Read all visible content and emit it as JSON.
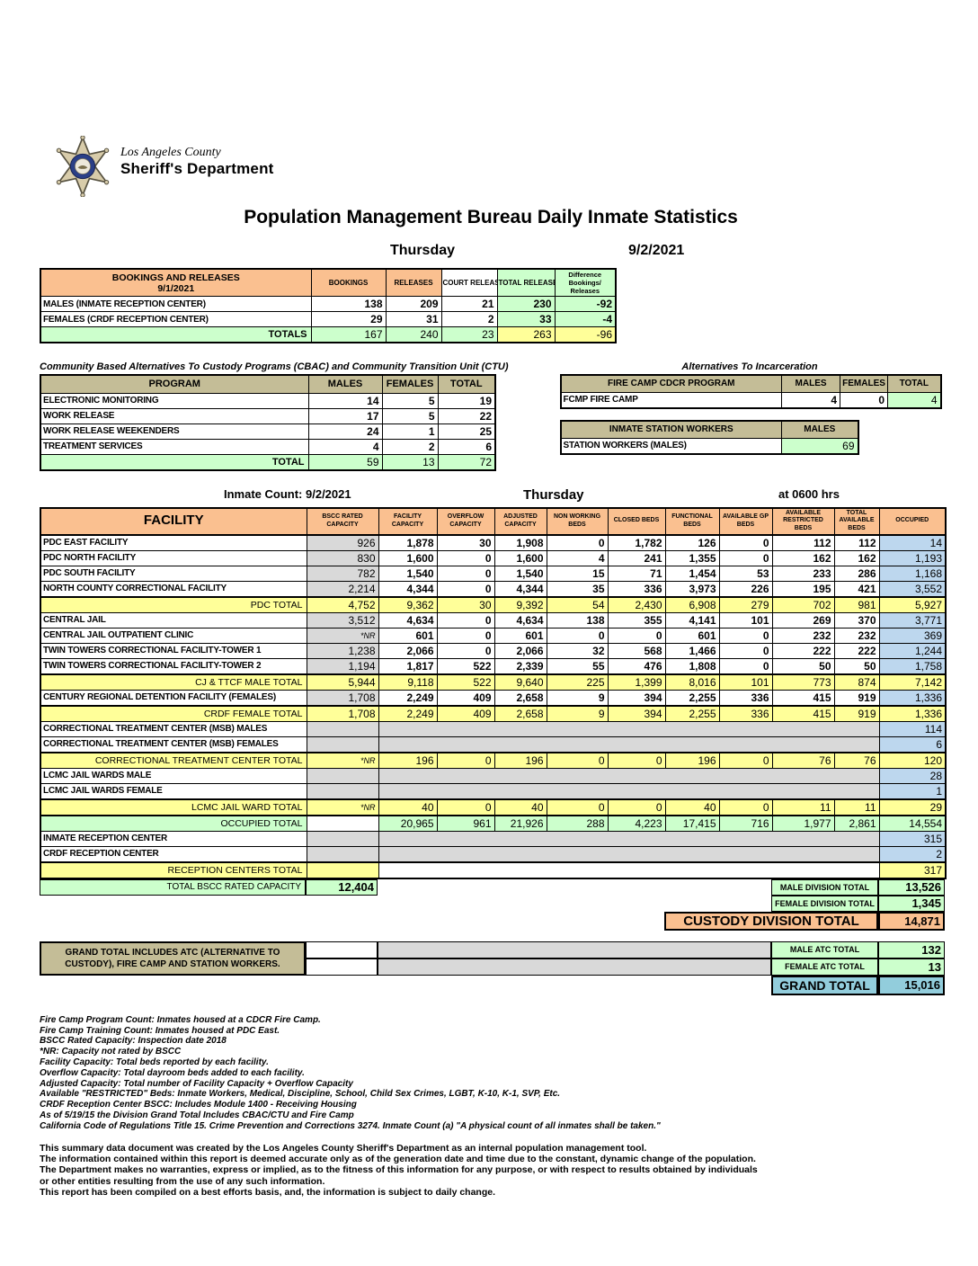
{
  "colors": {
    "orange": "#FAC090",
    "green": "#CCFFCC",
    "yellow": "#FFFF99",
    "tan": "#C4BD97",
    "gray": "#D9D9D9",
    "blue": "#BDD7EE",
    "teal": "#92CDDC",
    "badge_fill": "#D8CCAA",
    "badge_ring": "#2B3F87"
  },
  "logo": {
    "county": "Los Angeles County",
    "dept": "Sheriff's Department"
  },
  "title": "Population Management Bureau Daily Inmate Statistics",
  "header": {
    "weekday": "Thursday",
    "date": "9/2/2021"
  },
  "bookings": {
    "title": "BOOKINGS AND RELEASES",
    "date": "9/1/2021",
    "columns": [
      "BOOKINGS",
      "RELEASES",
      "COURT RELEASES",
      "TOTAL RELEASES",
      "Difference Bookings/ Releases"
    ],
    "rows": [
      {
        "label": "MALES (INMATE RECEPTION CENTER)",
        "values": [
          "138",
          "209",
          "21",
          "230",
          "-92"
        ]
      },
      {
        "label": "FEMALES (CRDF RECEPTION CENTER)",
        "values": [
          "29",
          "31",
          "2",
          "33",
          "-4"
        ]
      }
    ],
    "totals": {
      "label": "TOTALS",
      "values": [
        "167",
        "240",
        "23",
        "263",
        "-96"
      ]
    }
  },
  "cbac": {
    "title": "Community Based Alternatives To Custody Programs (CBAC) and Community Transition Unit (CTU)",
    "columns": [
      "PROGRAM",
      "MALES",
      "FEMALES",
      "TOTAL"
    ],
    "rows": [
      {
        "label": "ELECTRONIC MONITORING",
        "values": [
          "14",
          "5",
          "19"
        ]
      },
      {
        "label": "WORK RELEASE",
        "values": [
          "17",
          "5",
          "22"
        ]
      },
      {
        "label": "WORK RELEASE WEEKENDERS",
        "values": [
          "24",
          "1",
          "25"
        ]
      },
      {
        "label": "TREATMENT SERVICES",
        "values": [
          "4",
          "2",
          "6"
        ]
      }
    ],
    "totals": {
      "label": "TOTAL",
      "values": [
        "59",
        "13",
        "72"
      ]
    }
  },
  "ati": {
    "title": "Alternatives To Incarceration",
    "fire_camp": {
      "columns": [
        "FIRE CAMP CDCR PROGRAM",
        "MALES",
        "FEMALES",
        "TOTAL"
      ],
      "row": {
        "label": "FCMP FIRE CAMP",
        "values": [
          "4",
          "0",
          "4"
        ]
      }
    },
    "station_workers": {
      "columns": [
        "INMATE STATION WORKERS",
        "MALES"
      ],
      "row": {
        "label": "STATION WORKERS (MALES)",
        "value": "69"
      }
    }
  },
  "facility_table": {
    "count_label": "Inmate Count: 9/2/2021",
    "weekday": "Thursday",
    "time": "at 0600 hrs",
    "columns": [
      "FACILITY",
      "BSCC RATED CAPACITY",
      "FACILITY CAPACITY",
      "OVERFLOW CAPACITY",
      "ADJUSTED CAPACITY",
      "NON WORKING BEDS",
      "CLOSED BEDS",
      "FUNCTIONAL BEDS",
      "AVAILABLE GP BEDS",
      "AVAILABLE RESTRICTED BEDS",
      "TOTAL AVAILABLE BEDS",
      "OCCUPIED"
    ],
    "rows": [
      {
        "type": "f",
        "label": "PDC EAST FACILITY",
        "bscc": "926",
        "values": [
          "1,878",
          "30",
          "1,908",
          "0",
          "1,782",
          "126",
          "0",
          "112",
          "112"
        ],
        "occupied": "14"
      },
      {
        "type": "f",
        "label": "PDC NORTH FACILITY",
        "bscc": "830",
        "values": [
          "1,600",
          "0",
          "1,600",
          "4",
          "241",
          "1,355",
          "0",
          "162",
          "162"
        ],
        "occupied": "1,193"
      },
      {
        "type": "f",
        "label": "PDC SOUTH FACILITY",
        "bscc": "782",
        "values": [
          "1,540",
          "0",
          "1,540",
          "15",
          "71",
          "1,454",
          "53",
          "233",
          "286"
        ],
        "occupied": "1,168"
      },
      {
        "type": "f",
        "label": "NORTH COUNTY CORRECTIONAL FACILITY",
        "bscc": "2,214",
        "values": [
          "4,344",
          "0",
          "4,344",
          "35",
          "336",
          "3,973",
          "226",
          "195",
          "421"
        ],
        "occupied": "3,552"
      },
      {
        "type": "t",
        "label": "PDC TOTAL",
        "bscc": "4,752",
        "values": [
          "9,362",
          "30",
          "9,392",
          "54",
          "2,430",
          "6,908",
          "279",
          "702",
          "981"
        ],
        "occupied": "5,927"
      },
      {
        "type": "f",
        "label": "CENTRAL JAIL",
        "bscc": "3,512",
        "values": [
          "4,634",
          "0",
          "4,634",
          "138",
          "355",
          "4,141",
          "101",
          "269",
          "370"
        ],
        "occupied": "3,771"
      },
      {
        "type": "f",
        "label": "CENTRAL JAIL OUTPATIENT CLINIC",
        "bscc": "*NR",
        "values": [
          "601",
          "0",
          "601",
          "0",
          "0",
          "601",
          "0",
          "232",
          "232"
        ],
        "occupied": "369"
      },
      {
        "type": "f",
        "label": "TWIN TOWERS CORRECTIONAL FACILITY-TOWER 1",
        "bscc": "1,238",
        "values": [
          "2,066",
          "0",
          "2,066",
          "32",
          "568",
          "1,466",
          "0",
          "222",
          "222"
        ],
        "occupied": "1,244"
      },
      {
        "type": "f",
        "label": "TWIN TOWERS CORRECTIONAL FACILITY-TOWER 2",
        "bscc": "1,194",
        "values": [
          "1,817",
          "522",
          "2,339",
          "55",
          "476",
          "1,808",
          "0",
          "50",
          "50"
        ],
        "occupied": "1,758"
      },
      {
        "type": "t",
        "label": "CJ & TTCF MALE TOTAL",
        "bscc": "5,944",
        "values": [
          "9,118",
          "522",
          "9,640",
          "225",
          "1,399",
          "8,016",
          "101",
          "773",
          "874"
        ],
        "occupied": "7,142"
      },
      {
        "type": "f",
        "label": "CENTURY REGIONAL DETENTION FACILITY (FEMALES)",
        "bscc": "1,708",
        "values": [
          "2,249",
          "409",
          "2,658",
          "9",
          "394",
          "2,255",
          "336",
          "415",
          "919"
        ],
        "occupied": "1,336"
      },
      {
        "type": "t",
        "label": "CRDF FEMALE TOTAL",
        "bscc": "1,708",
        "values": [
          "2,249",
          "409",
          "2,658",
          "9",
          "394",
          "2,255",
          "336",
          "415",
          "919"
        ],
        "occupied": "1,336"
      },
      {
        "type": "g",
        "label": "CORRECTIONAL TREATMENT CENTER (MSB) MALES",
        "occupied": "114"
      },
      {
        "type": "g",
        "label": "CORRECTIONAL TREATMENT CENTER (MSB) FEMALES",
        "occupied": "6"
      },
      {
        "type": "t",
        "label": "CORRECTIONAL TREATMENT CENTER  TOTAL",
        "bscc": "*NR",
        "values": [
          "196",
          "0",
          "196",
          "0",
          "0",
          "196",
          "0",
          "76",
          "76"
        ],
        "occupied": "120"
      },
      {
        "type": "g",
        "label": "LCMC JAIL WARDS MALE",
        "occupied": "28"
      },
      {
        "type": "g",
        "label": "LCMC JAIL WARDS FEMALE",
        "occupied": "1"
      },
      {
        "type": "t",
        "label": "LCMC JAIL WARD TOTAL",
        "bscc": "*NR",
        "values": [
          "40",
          "0",
          "40",
          "0",
          "0",
          "40",
          "0",
          "11",
          "11"
        ],
        "occupied": "29"
      },
      {
        "type": "gt",
        "label": "OCCUPIED TOTAL",
        "bscc": "",
        "values": [
          "20,965",
          "961",
          "21,926",
          "288",
          "4,223",
          "17,415",
          "716",
          "1,977",
          "2,861"
        ],
        "occupied": "14,554"
      },
      {
        "type": "g",
        "label": "INMATE RECEPTION CENTER",
        "occupied": "315"
      },
      {
        "type": "g",
        "label": "CRDF RECEPTION CENTER",
        "occupied": "2"
      },
      {
        "type": "rt",
        "label": "RECEPTION CENTERS TOTAL",
        "occupied": "317"
      }
    ],
    "bscc_total": {
      "label": "TOTAL BSCC RATED CAPACITY",
      "value": "12,404"
    },
    "division_totals": [
      {
        "label": "MALE DIVISION TOTAL",
        "value": "13,526"
      },
      {
        "label": "FEMALE DIVISION TOTAL",
        "value": "1,345"
      }
    ],
    "custody_total": {
      "label": "CUSTODY DIVISION TOTAL",
      "value": "14,871"
    }
  },
  "atc": {
    "note": "GRAND TOTAL INCLUDES ATC (ALTERNATIVE TO CUSTODY), FIRE CAMP AND STATION WORKERS.",
    "rows": [
      {
        "label": "MALE ATC TOTAL",
        "value": "132"
      },
      {
        "label": "FEMALE ATC TOTAL",
        "value": "13"
      }
    ],
    "grand_total": {
      "label": "GRAND TOTAL",
      "value": "15,016"
    }
  },
  "footnotes": [
    "Fire Camp Program Count: Inmates housed at a CDCR Fire Camp.",
    "Fire Camp Training Count: Inmates housed at PDC East.",
    "BSCC Rated Capacity: Inspection date 2018",
    "*NR: Capacity not rated by BSCC",
    "Facility Capacity: Total beds reported by each facility.",
    "Overflow Capacity: Total dayroom beds added to each facility.",
    "Adjusted Capacity: Total number of Facility Capacity + Overflow Capacity",
    "Available \"RESTRICTED\" Beds: Inmate Workers, Medical, Discipline, School, Child Sex Crimes,  LGBT, K-10, K-1, SVP, Etc.",
    "CRDF Reception Center BSCC: Includes Module 1400 - Receiving Housing",
    "As of 5/19/15 the Division Grand Total Includes CBAC/CTU and Fire Camp",
    "California Code of Regulations Title 15. Crime Prevention and Corrections 3274. Inmate Count (a) \"A physical count of all inmates shall be taken.\""
  ],
  "disclaimer": [
    "This summary data document was created by the Los Angeles County Sheriff's Department as an internal population management tool.",
    "The information contained within this report is deemed accurate only as of the generation date and time due to the constant, dynamic change of the population.",
    "The Department makes no warranties, express or implied, as to the fitness of this information for any purpose, or with respect to results obtained by individuals",
    "or other entities resulting from the use of any such information.",
    "This report has been compiled on a best efforts basis, and, the information is subject to daily change."
  ]
}
